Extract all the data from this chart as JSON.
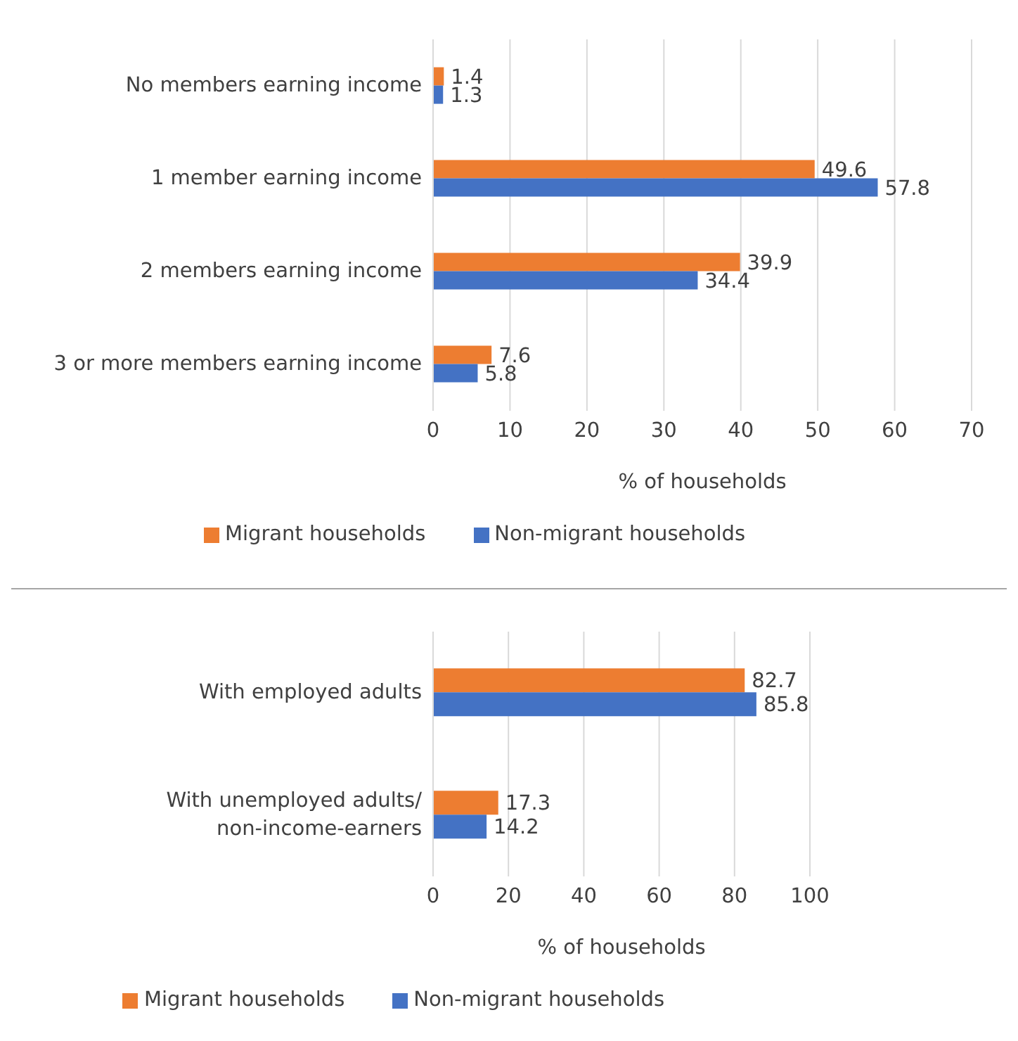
{
  "chart_data": [
    {
      "type": "bar",
      "orientation": "horizontal",
      "categories": [
        "No members earning income",
        "1 member earning income",
        "2 members earning income",
        "3 or more members earning income"
      ],
      "series": [
        {
          "name": "Migrant households",
          "color": "#ed7d31",
          "values": [
            1.4,
            49.6,
            39.9,
            7.6
          ]
        },
        {
          "name": "Non-migrant households",
          "color": "#4472c4",
          "values": [
            1.3,
            57.8,
            34.4,
            5.8
          ]
        }
      ],
      "xlabel": "% of households",
      "xlim": [
        0,
        70
      ],
      "xticks": [
        0,
        10,
        20,
        30,
        40,
        50,
        60,
        70
      ],
      "grid": "x",
      "legend": "bottom",
      "data_labels": true
    },
    {
      "type": "bar",
      "orientation": "horizontal",
      "categories": [
        "With employed adults",
        "With unemployed adults/ non-income-earners"
      ],
      "series": [
        {
          "name": "Migrant households",
          "color": "#ed7d31",
          "values": [
            82.7,
            17.3
          ]
        },
        {
          "name": "Non-migrant households",
          "color": "#4472c4",
          "values": [
            85.8,
            14.2
          ]
        }
      ],
      "xlabel": "% of households",
      "xlim": [
        0,
        100
      ],
      "xticks": [
        0,
        20,
        40,
        60,
        80,
        100
      ],
      "grid": "x",
      "legend": "bottom",
      "data_labels": true
    }
  ]
}
